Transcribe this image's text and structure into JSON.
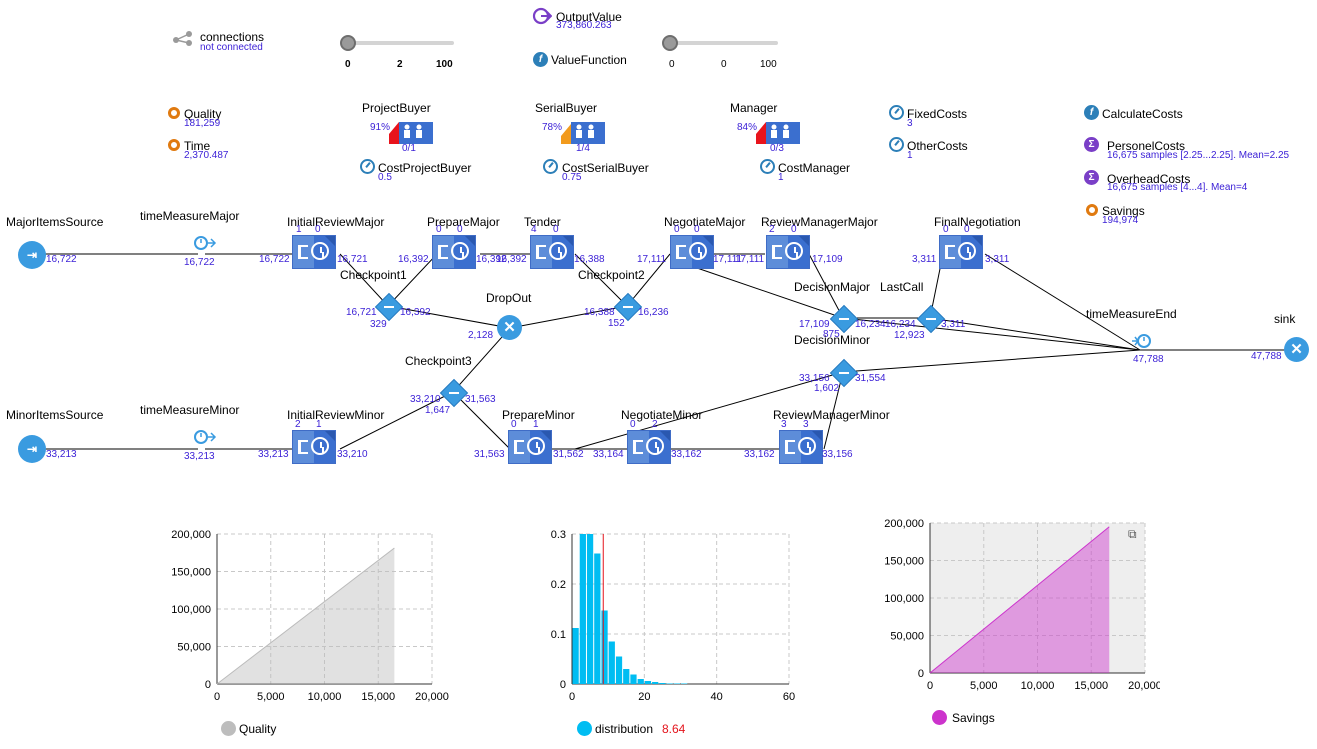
{
  "top": {
    "connections": {
      "title": "connections",
      "status": "not connected"
    },
    "slider1": {
      "ticks": [
        "0",
        "2",
        "100"
      ]
    },
    "outputValue": {
      "label": "OutputValue",
      "value": "373,860.263"
    },
    "valueFunction": {
      "label": "ValueFunction"
    },
    "slider2": {
      "ticks": [
        "0",
        "0",
        "100"
      ]
    }
  },
  "variables": {
    "quality": {
      "label": "Quality",
      "value": "181,259"
    },
    "time": {
      "label": "Time",
      "value": "2,370.487"
    },
    "fixedCosts": {
      "label": "FixedCosts",
      "value": "3"
    },
    "otherCosts": {
      "label": "OtherCosts",
      "value": "1"
    },
    "calculateCosts": {
      "label": "CalculateCosts"
    },
    "personelCosts": {
      "label": "PersonelCosts",
      "value": "16,675 samples [2.25...2.25]. Mean=2.25"
    },
    "overheadCosts": {
      "label": "OverheadCosts",
      "value": "16,675 samples [4...4]. Mean=4"
    },
    "savings": {
      "label": "Savings",
      "value": "194,974"
    }
  },
  "resources": {
    "projectBuyer": {
      "label": "ProjectBuyer",
      "pct": "91%",
      "count": "0/1",
      "cost_label": "CostProjectBuyer",
      "cost": "0.5",
      "color": "#e8141c"
    },
    "serialBuyer": {
      "label": "SerialBuyer",
      "pct": "78%",
      "count": "1/4",
      "cost_label": "CostSerialBuyer",
      "cost": "0.75",
      "color": "#f29b1d"
    },
    "manager": {
      "label": "Manager",
      "pct": "84%",
      "count": "0/3",
      "cost_label": "CostManager",
      "cost": "1",
      "color": "#e8141c"
    }
  },
  "flow": {
    "majorSource": {
      "label": "MajorItemsSource",
      "out": "16,722"
    },
    "timeMeasureMajor": {
      "label": "timeMeasureMajor",
      "val": "16,722"
    },
    "initialReviewMajor": {
      "label": "InitialReviewMajor",
      "q": "1",
      "n": "0",
      "in": "16,722",
      "out": "16,721"
    },
    "checkpoint1": {
      "label": "Checkpoint1",
      "in": "16,721",
      "out": "16,392",
      "drop": "329"
    },
    "prepareMajor": {
      "label": "PrepareMajor",
      "q": "0",
      "n": "0",
      "in": "16,392",
      "out": "16,392"
    },
    "tender": {
      "label": "Tender",
      "q": "4",
      "n": "0",
      "in": "16,392",
      "out": "16,388"
    },
    "checkpoint2": {
      "label": "Checkpoint2",
      "in": "16,388",
      "out": "16,236",
      "drop": "152"
    },
    "dropOut": {
      "label": "DropOut",
      "val": "2,128"
    },
    "negotiateMajor": {
      "label": "NegotiateMajor",
      "q": "0",
      "n": "0",
      "in": "17,111",
      "out": "17,111"
    },
    "reviewManagerMajor": {
      "label": "ReviewManagerMajor",
      "q": "2",
      "n": "0",
      "in": "17,111",
      "out": "17,109"
    },
    "decisionMajor": {
      "label": "DecisionMajor",
      "in": "17,109",
      "out": "16,234",
      "drop": "875"
    },
    "lastCall": {
      "label": "LastCall",
      "in": "16,234",
      "out": "3,311",
      "drop": "12,923"
    },
    "finalNegotiation": {
      "label": "FinalNegotiation",
      "q": "0",
      "n": "0",
      "in": "3,311",
      "out": "3,311"
    },
    "timeMeasureEnd": {
      "label": "timeMeasureEnd",
      "val": "47,788"
    },
    "sink": {
      "label": "sink",
      "val": "47,788"
    },
    "decisionMinor": {
      "label": "DecisionMinor",
      "in": "33,156",
      "out": "31,554",
      "drop": "1,602"
    },
    "checkpoint3": {
      "label": "Checkpoint3",
      "in": "33,210",
      "out": "31,563",
      "drop": "1,647"
    },
    "minorSource": {
      "label": "MinorItemsSource",
      "out": "33,213"
    },
    "timeMeasureMinor": {
      "label": "timeMeasureMinor",
      "val": "33,213"
    },
    "initialReviewMinor": {
      "label": "InitialReviewMinor",
      "q": "2",
      "n": "1",
      "in": "33,213",
      "out": "33,210"
    },
    "prepareMinor": {
      "label": "PrepareMinor",
      "q": "0",
      "n": "1",
      "in": "31,563",
      "out": "31,562"
    },
    "negotiateMinor": {
      "label": "NegotiateMinor",
      "q": "0",
      "n": "2",
      "in": "33,164",
      "out": "33,162"
    },
    "reviewManagerMinor": {
      "label": "ReviewManagerMinor",
      "q": "3",
      "n": "3",
      "in": "33,162",
      "out": "33,156"
    }
  },
  "chart_data": [
    {
      "type": "area",
      "legend": "Quality",
      "color": "#bdbdbd",
      "x": [
        0,
        16500
      ],
      "y": [
        0,
        181259
      ],
      "xlim": [
        0,
        20000
      ],
      "ylim": [
        0,
        200000
      ],
      "xticks": [
        "0",
        "5,000",
        "10,000",
        "15,000",
        "20,000"
      ],
      "yticks": [
        "0",
        "50,000",
        "100,000",
        "150,000",
        "200,000"
      ],
      "grid": true
    },
    {
      "type": "bar",
      "legend": "distribution",
      "legend_value": "8.64",
      "color": "#00bdf2",
      "mean_marker": 8.64,
      "bin_starts": [
        0,
        2,
        4,
        6,
        8,
        10,
        12,
        14,
        16,
        18,
        20,
        22,
        24,
        26,
        28,
        30
      ],
      "values": [
        0.112,
        0.3,
        0.3,
        0.261,
        0.147,
        0.085,
        0.055,
        0.03,
        0.019,
        0.01,
        0.006,
        0.004,
        0.002,
        0.001,
        0.001,
        0.001
      ],
      "xlim": [
        0,
        60
      ],
      "ylim": [
        0,
        0.3
      ],
      "xticks": [
        "0",
        "20",
        "40",
        "60"
      ],
      "yticks": [
        "0",
        "0.1",
        "0.2",
        "0.3"
      ],
      "grid": true
    },
    {
      "type": "area",
      "legend": "Savings",
      "color": "#cc33cc",
      "x": [
        0,
        16675
      ],
      "y": [
        0,
        194974
      ],
      "xlim": [
        0,
        20000
      ],
      "ylim": [
        0,
        200000
      ],
      "xticks": [
        "0",
        "5,000",
        "10,000",
        "15,000",
        "20,000"
      ],
      "yticks": [
        "0",
        "50,000",
        "100,000",
        "150,000",
        "200,000"
      ],
      "grid": true
    }
  ]
}
